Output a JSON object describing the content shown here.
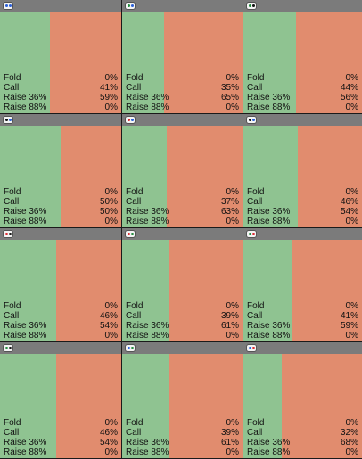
{
  "colors": {
    "header": "#7b7b7b",
    "call": "#8fc391",
    "raise": "#e18c6e",
    "separator": "#1a1a1a",
    "text": "#111111"
  },
  "action_labels": {
    "fold": "Fold",
    "call": "Call",
    "raise_36": "Raise 36%",
    "raise_88": "Raise 88%"
  },
  "cells": [
    {
      "badge_colors": [
        "#2b5fd9",
        "#2b5fd9"
      ],
      "fold": "0%",
      "call": "41%",
      "raise_36": "59%",
      "raise_88": "0%",
      "call_frac": 0.41
    },
    {
      "badge_colors": [
        "#1e8a3a",
        "#2b5fd9"
      ],
      "fold": "0%",
      "call": "35%",
      "raise_36": "65%",
      "raise_88": "0%",
      "call_frac": 0.35
    },
    {
      "badge_colors": [
        "#1e8a3a",
        "#111111"
      ],
      "fold": "0%",
      "call": "44%",
      "raise_36": "56%",
      "raise_88": "0%",
      "call_frac": 0.44
    },
    {
      "badge_colors": [
        "#111111",
        "#2b5fd9"
      ],
      "fold": "0%",
      "call": "50%",
      "raise_36": "50%",
      "raise_88": "0%",
      "call_frac": 0.5
    },
    {
      "badge_colors": [
        "#d9252b",
        "#2b5fd9"
      ],
      "fold": "0%",
      "call": "37%",
      "raise_36": "63%",
      "raise_88": "0%",
      "call_frac": 0.37
    },
    {
      "badge_colors": [
        "#111111",
        "#2b5fd9"
      ],
      "fold": "0%",
      "call": "46%",
      "raise_36": "54%",
      "raise_88": "0%",
      "call_frac": 0.46
    },
    {
      "badge_colors": [
        "#d9252b",
        "#111111"
      ],
      "fold": "0%",
      "call": "46%",
      "raise_36": "54%",
      "raise_88": "0%",
      "call_frac": 0.46
    },
    {
      "badge_colors": [
        "#d9252b",
        "#1e8a3a"
      ],
      "fold": "0%",
      "call": "39%",
      "raise_36": "61%",
      "raise_88": "0%",
      "call_frac": 0.39
    },
    {
      "badge_colors": [
        "#1e8a3a",
        "#d9252b"
      ],
      "fold": "0%",
      "call": "41%",
      "raise_36": "59%",
      "raise_88": "0%",
      "call_frac": 0.41
    },
    {
      "badge_colors": [
        "#1e8a3a",
        "#111111"
      ],
      "fold": "0%",
      "call": "46%",
      "raise_36": "54%",
      "raise_88": "0%",
      "call_frac": 0.46
    },
    {
      "badge_colors": [
        "#2b5fd9",
        "#1e8a3a"
      ],
      "fold": "0%",
      "call": "39%",
      "raise_36": "61%",
      "raise_88": "0%",
      "call_frac": 0.39
    },
    {
      "badge_colors": [
        "#2b5fd9",
        "#d9252b"
      ],
      "fold": "0%",
      "call": "32%",
      "raise_36": "68%",
      "raise_88": "0%",
      "call_frac": 0.32
    }
  ]
}
